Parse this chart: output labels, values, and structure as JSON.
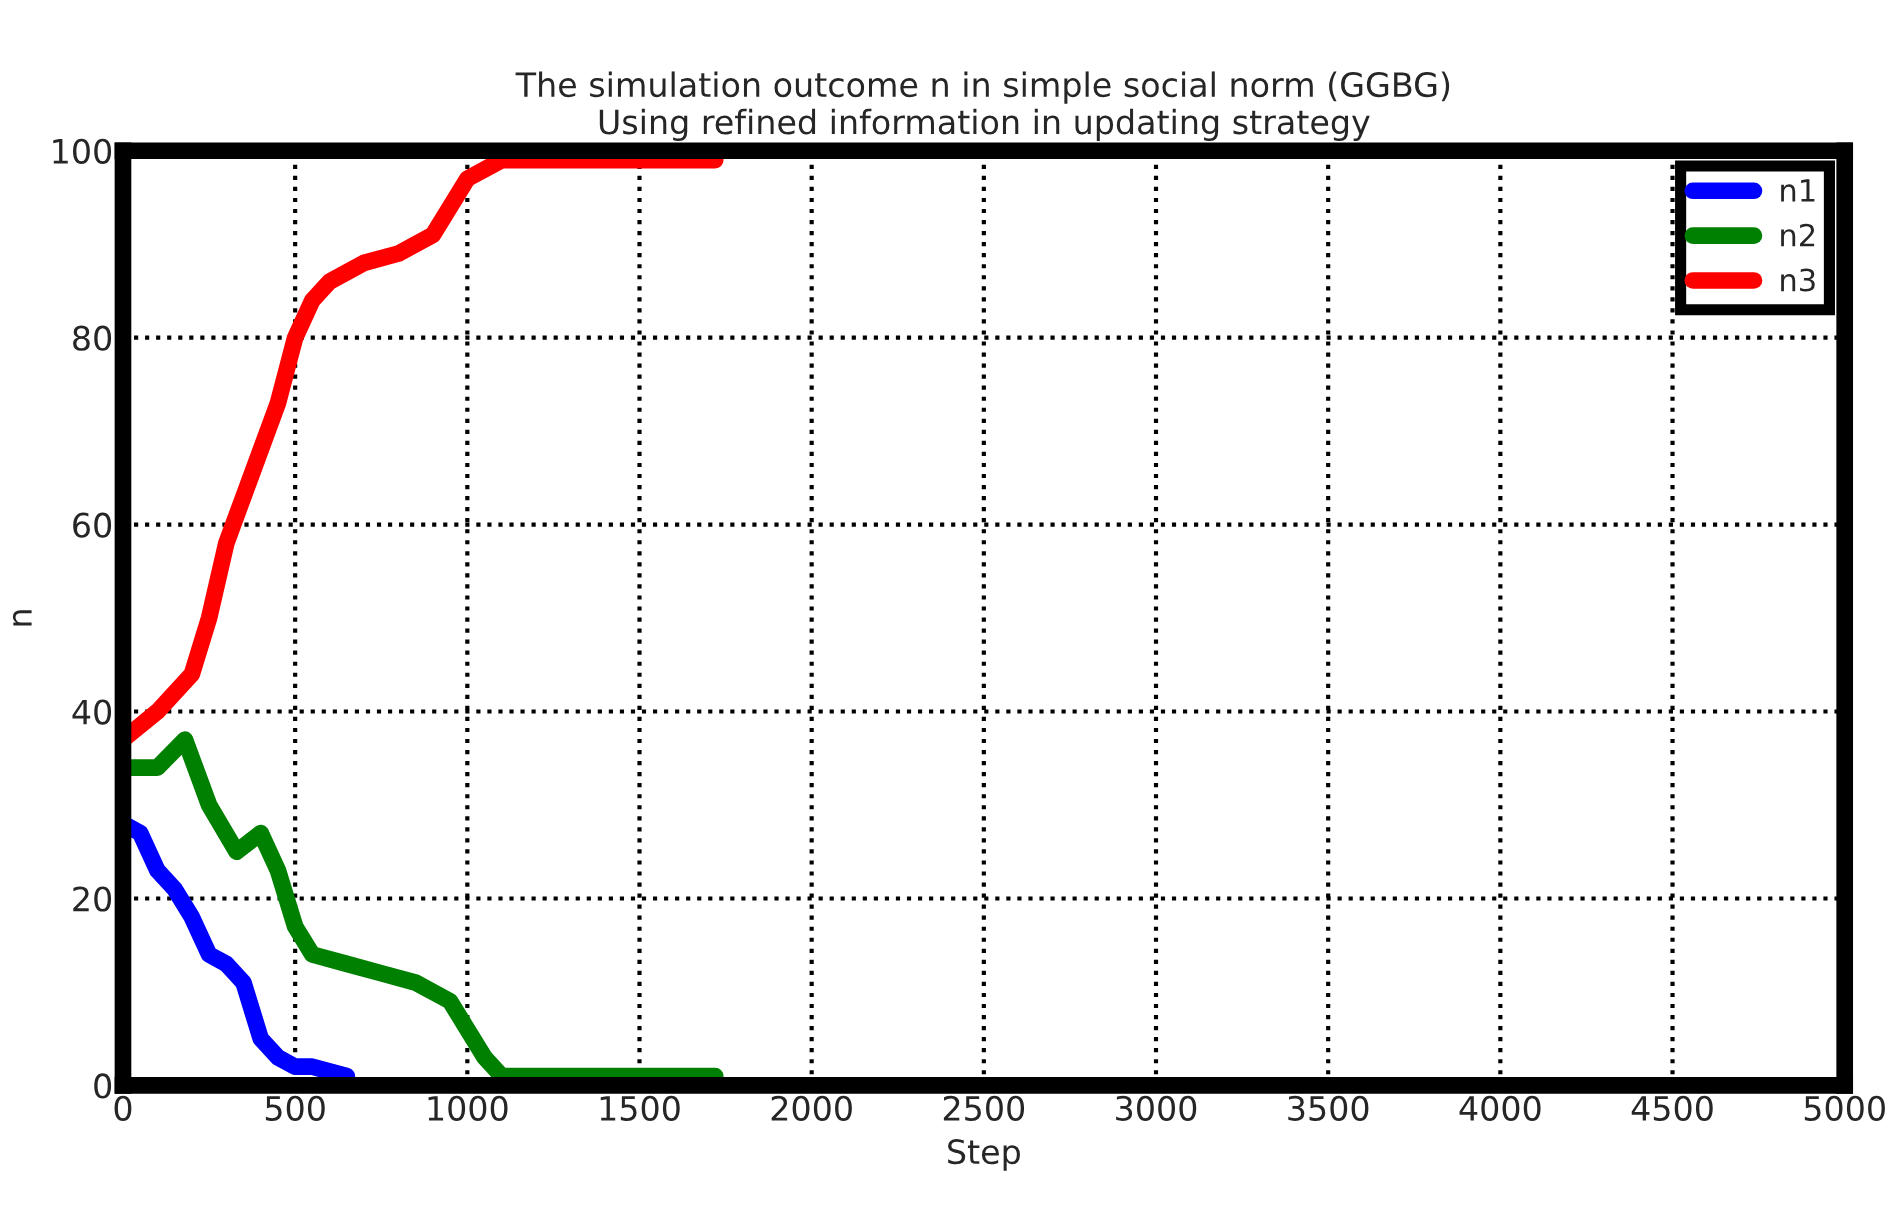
{
  "chart_data": {
    "type": "line",
    "title": "The simulation outcome n in simple social norm (GGBG)\nUsing refined information in updating strategy",
    "xlabel": "Step",
    "ylabel": "n",
    "xlim": [
      0,
      5000
    ],
    "ylim": [
      0,
      100
    ],
    "xticks": [
      0,
      500,
      1000,
      1500,
      2000,
      2500,
      3000,
      3500,
      4000,
      4500,
      5000
    ],
    "yticks": [
      0,
      20,
      40,
      60,
      80,
      100
    ],
    "grid": true,
    "legend": "top right",
    "line_style": "solid",
    "marker": "none",
    "series": [
      {
        "name": "n1",
        "color": "#0000ff",
        "x": [
          0,
          50,
          100,
          150,
          200,
          250,
          300,
          350,
          400,
          450,
          500,
          550,
          650
        ],
        "values": [
          28,
          27,
          23,
          21,
          18,
          14,
          13,
          11,
          5,
          3,
          2,
          2,
          1
        ]
      },
      {
        "name": "n2",
        "color": "#008000",
        "x": [
          0,
          100,
          180,
          250,
          330,
          400,
          450,
          500,
          550,
          650,
          750,
          850,
          950,
          1000,
          1050,
          1100,
          1720
        ],
        "values": [
          34,
          34,
          37,
          30,
          25,
          27,
          23,
          17,
          14,
          13,
          12,
          11,
          9,
          6,
          3,
          1,
          1
        ]
      },
      {
        "name": "n3",
        "color": "#ff0000",
        "x": [
          0,
          100,
          200,
          250,
          300,
          350,
          400,
          450,
          500,
          550,
          600,
          700,
          800,
          900,
          950,
          1000,
          1100,
          1200,
          1720
        ],
        "values": [
          37,
          40,
          44,
          50,
          58,
          63,
          68,
          73,
          80,
          84,
          86,
          88,
          89,
          91,
          94,
          97,
          99,
          99,
          99
        ]
      }
    ]
  }
}
